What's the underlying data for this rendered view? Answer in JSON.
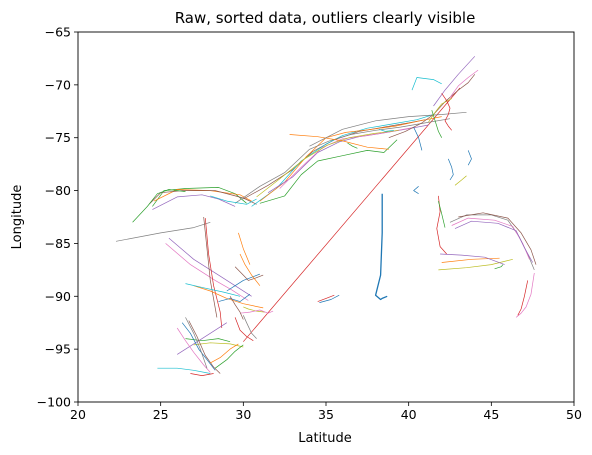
{
  "chart_data": {
    "type": "line",
    "title": "Raw, sorted data, outliers clearly visible",
    "xlabel": "Latitude",
    "ylabel": "Longitude",
    "xlim": [
      20,
      50
    ],
    "ylim": [
      -100,
      -65
    ],
    "xticks": [
      20,
      25,
      30,
      35,
      40,
      45,
      50
    ],
    "yticks": [
      -65,
      -70,
      -75,
      -80,
      -85,
      -90,
      -95,
      -100
    ],
    "xtick_labels": [
      "20",
      "25",
      "30",
      "35",
      "40",
      "45",
      "50"
    ],
    "ytick_labels": [
      "−65",
      "−70",
      "−75",
      "−80",
      "−85",
      "−90",
      "−95",
      "−100"
    ],
    "grid": false,
    "legend": "none",
    "colors": [
      "#1f77b4",
      "#ff7f0e",
      "#2ca02c",
      "#d62728",
      "#9467bd",
      "#8c564b",
      "#e377c2",
      "#7f7f7f",
      "#bcbd22",
      "#17becf"
    ],
    "series": [
      {
        "color": "#d62728",
        "x": [
          30.0,
          43.1
        ],
        "y": [
          -94.3,
          -70.3
        ]
      },
      {
        "color": "#1f77b4",
        "x": [
          38.4,
          38.4,
          38.3,
          38.0,
          38.3,
          38.4,
          38.7
        ],
        "y": [
          -80.3,
          -84.0,
          -88.0,
          -89.9,
          -90.3,
          -90.2,
          -90.0
        ]
      },
      {
        "color": "#2ca02c",
        "x": [
          24.5,
          25.2,
          26.5,
          28.5,
          29.5,
          30.2
        ],
        "y": [
          -81.5,
          -80.0,
          -79.8,
          -79.7,
          -80.3,
          -81.2
        ]
      },
      {
        "color": "#ff7f0e",
        "x": [
          24.6,
          26.0,
          28.0,
          29.8,
          30.5
        ],
        "y": [
          -81.0,
          -79.9,
          -80.0,
          -80.4,
          -81.0
        ]
      },
      {
        "color": "#8c564b",
        "x": [
          24.3,
          25.0,
          26.3,
          28.3,
          30.0,
          30.8
        ],
        "y": [
          -81.3,
          -80.2,
          -80.0,
          -80.0,
          -80.7,
          -81.3
        ]
      },
      {
        "color": "#2ca02c",
        "x": [
          23.3,
          24.2,
          24.8,
          25.5,
          26.5
        ],
        "y": [
          -83.0,
          -81.5,
          -80.3,
          -79.9,
          -80.1
        ]
      },
      {
        "color": "#9467bd",
        "x": [
          24.5,
          26.0,
          27.5,
          28.5,
          29.5
        ],
        "y": [
          -81.8,
          -80.6,
          -80.4,
          -80.8,
          -81.5
        ]
      },
      {
        "color": "#8c564b",
        "x": [
          30.0,
          31.5,
          33.0,
          34.2,
          35.5,
          37.0,
          38.5,
          40.0,
          41.0
        ],
        "y": [
          -80.8,
          -79.5,
          -78.0,
          -76.3,
          -75.2,
          -74.4,
          -74.0,
          -73.6,
          -73.3
        ]
      },
      {
        "color": "#17becf",
        "x": [
          30.5,
          32.0,
          33.5,
          35.0,
          36.0,
          37.5,
          39.0,
          40.5,
          41.5
        ],
        "y": [
          -81.5,
          -79.8,
          -77.2,
          -75.6,
          -74.8,
          -74.1,
          -73.7,
          -73.3,
          -72.8
        ]
      },
      {
        "color": "#ff7f0e",
        "x": [
          31.0,
          32.5,
          33.8,
          35.0,
          36.2,
          37.8,
          39.2,
          40.7,
          42.0
        ],
        "y": [
          -81.0,
          -79.2,
          -76.8,
          -75.0,
          -74.5,
          -74.2,
          -73.9,
          -73.4,
          -73.0
        ]
      },
      {
        "color": "#7f7f7f",
        "x": [
          29.5,
          31.0,
          32.5,
          34.0,
          35.2,
          36.5,
          38.0,
          39.5,
          41.0,
          42.5
        ],
        "y": [
          -81.2,
          -79.6,
          -78.3,
          -76.1,
          -75.3,
          -74.7,
          -74.3,
          -74.0,
          -73.6,
          -73.2
        ]
      },
      {
        "color": "#9467bd",
        "x": [
          31.5,
          33.0,
          34.5,
          35.8,
          37.0,
          38.3,
          39.8,
          41.2
        ],
        "y": [
          -80.2,
          -78.7,
          -76.4,
          -75.4,
          -74.9,
          -74.6,
          -74.2,
          -73.8
        ]
      },
      {
        "color": "#e377c2",
        "x": [
          32.2,
          33.5,
          34.8,
          36.0,
          37.5,
          39.0,
          40.4
        ],
        "y": [
          -79.8,
          -77.8,
          -75.9,
          -75.1,
          -74.8,
          -74.4,
          -74.0
        ]
      },
      {
        "color": "#bcbd22",
        "x": [
          30.8,
          32.2,
          33.7,
          35.1,
          36.4,
          37.9,
          39.4
        ],
        "y": [
          -80.6,
          -78.9,
          -77.0,
          -75.7,
          -75.0,
          -74.6,
          -74.3
        ]
      },
      {
        "color": "#2ca02c",
        "x": [
          31.0,
          32.5,
          33.5,
          34.5,
          36.0,
          37.5,
          38.5,
          39.3
        ],
        "y": [
          -81.2,
          -80.5,
          -78.5,
          -77.2,
          -76.7,
          -76.2,
          -76.4,
          -75.2
        ]
      },
      {
        "color": "#ff7f0e",
        "x": [
          32.8,
          34.5,
          36.0,
          37.5,
          38.8
        ],
        "y": [
          -74.7,
          -74.9,
          -75.3,
          -75.9,
          -76.1
        ]
      },
      {
        "color": "#17becf",
        "x": [
          30.8,
          30.2,
          29.0,
          28.0
        ],
        "y": [
          -80.8,
          -81.3,
          -81.0,
          -80.5
        ]
      },
      {
        "color": "#7f7f7f",
        "x": [
          34.0,
          36.0,
          38.0,
          40.0,
          42.0,
          43.5
        ],
        "y": [
          -75.8,
          -74.2,
          -73.4,
          -73.0,
          -72.8,
          -72.6
        ]
      },
      {
        "color": "#8c564b",
        "x": [
          38.8,
          39.8,
          40.8,
          41.5,
          42.2,
          43.0,
          43.6,
          44.0
        ],
        "y": [
          -75.0,
          -74.4,
          -73.6,
          -72.8,
          -71.6,
          -70.5,
          -69.8,
          -69.0
        ]
      },
      {
        "color": "#bcbd22",
        "x": [
          41.2,
          41.6,
          42.0,
          42.6
        ],
        "y": [
          -73.5,
          -72.6,
          -71.8,
          -71.3
        ]
      },
      {
        "color": "#9467bd",
        "x": [
          41.5,
          42.2,
          43.0,
          44.0
        ],
        "y": [
          -72.0,
          -70.5,
          -69.0,
          -67.3
        ]
      },
      {
        "color": "#e377c2",
        "x": [
          42.5,
          43.0,
          43.6,
          44.2
        ],
        "y": [
          -71.2,
          -70.1,
          -69.3,
          -68.6
        ]
      },
      {
        "color": "#17becf",
        "x": [
          40.2,
          40.5,
          41.5,
          42.0
        ],
        "y": [
          -70.5,
          -69.3,
          -69.5,
          -69.9
        ]
      },
      {
        "color": "#d62728",
        "x": [
          42.0,
          42.3,
          42.5,
          42.4,
          42.2,
          42.4,
          42.6
        ],
        "y": [
          -70.8,
          -71.5,
          -72.2,
          -72.8,
          -73.4,
          -73.9,
          -74.3
        ]
      },
      {
        "color": "#2ca02c",
        "x": [
          41.4,
          41.6,
          41.8,
          42.0
        ],
        "y": [
          -72.4,
          -73.4,
          -74.4,
          -75.0
        ]
      },
      {
        "color": "#1f77b4",
        "x": [
          40.3,
          40.6,
          40.8
        ],
        "y": [
          -74.0,
          -75.0,
          -76.2
        ]
      },
      {
        "color": "#d62728",
        "x": [
          41.8,
          41.9,
          41.7,
          41.9,
          42.3
        ],
        "y": [
          -80.5,
          -82.0,
          -83.6,
          -85.3,
          -86.0
        ]
      },
      {
        "color": "#2ca02c",
        "x": [
          41.8,
          42.0,
          42.2
        ],
        "y": [
          -81.0,
          -82.2,
          -83.5
        ]
      },
      {
        "color": "#bcbd22",
        "x": [
          42.8,
          43.2,
          43.5
        ],
        "y": [
          -79.5,
          -79.0,
          -78.6
        ]
      },
      {
        "color": "#1f77b4",
        "x": [
          43.6,
          43.8,
          43.6
        ],
        "y": [
          -76.2,
          -77.0,
          -77.6
        ]
      },
      {
        "color": "#1f77b4",
        "x": [
          42.4,
          42.6,
          42.7,
          42.5
        ],
        "y": [
          -77.0,
          -77.8,
          -78.5,
          -79.0
        ]
      },
      {
        "color": "#7f7f7f",
        "x": [
          42.5,
          43.5,
          45.0,
          46.0,
          46.7,
          47.2,
          47.6
        ],
        "y": [
          -83.0,
          -82.3,
          -82.3,
          -82.8,
          -84.4,
          -86.0,
          -87.5
        ]
      },
      {
        "color": "#e377c2",
        "x": [
          42.6,
          43.6,
          45.2,
          46.3,
          46.9,
          47.3
        ],
        "y": [
          -83.3,
          -82.6,
          -82.8,
          -83.4,
          -85.0,
          -86.5
        ]
      },
      {
        "color": "#9467bd",
        "x": [
          42.8,
          43.8,
          45.4,
          46.5,
          47.0,
          47.5
        ],
        "y": [
          -83.6,
          -82.9,
          -83.1,
          -83.8,
          -85.4,
          -86.8
        ]
      },
      {
        "color": "#8c564b",
        "x": [
          43.0,
          44.5,
          46.0,
          46.8,
          47.4,
          47.7
        ],
        "y": [
          -82.5,
          -82.1,
          -82.6,
          -84.0,
          -85.6,
          -87.0
        ]
      },
      {
        "color": "#e377c2",
        "x": [
          47.6,
          47.4,
          47.1,
          46.8,
          46.5
        ],
        "y": [
          -87.8,
          -89.8,
          -91.0,
          -91.6,
          -92.0
        ]
      },
      {
        "color": "#d62728",
        "x": [
          47.2,
          47.0,
          46.8,
          46.6
        ],
        "y": [
          -88.5,
          -90.0,
          -91.2,
          -91.8
        ]
      },
      {
        "color": "#bcbd22",
        "x": [
          41.8,
          43.5,
          45.0,
          46.3
        ],
        "y": [
          -87.5,
          -87.3,
          -87.0,
          -86.5
        ]
      },
      {
        "color": "#ff7f0e",
        "x": [
          42.0,
          43.8,
          45.5
        ],
        "y": [
          -86.8,
          -86.5,
          -86.4
        ]
      },
      {
        "color": "#9467bd",
        "x": [
          41.9,
          43.2,
          44.6,
          45.8
        ],
        "y": [
          -86.0,
          -86.1,
          -86.3,
          -87.0
        ]
      },
      {
        "color": "#2ca02c",
        "x": [
          45.2,
          45.6,
          45.7
        ],
        "y": [
          -87.4,
          -87.2,
          -87.0
        ]
      },
      {
        "color": "#7f7f7f",
        "x": [
          22.3,
          25.0,
          27.0,
          28.0
        ],
        "y": [
          -84.8,
          -84.0,
          -83.5,
          -83.0
        ]
      },
      {
        "color": "#9467bd",
        "x": [
          25.5,
          27.0,
          28.5,
          29.5,
          30.5
        ],
        "y": [
          -84.5,
          -86.5,
          -88.0,
          -89.0,
          -90.0
        ]
      },
      {
        "color": "#e377c2",
        "x": [
          25.3,
          26.8,
          28.3,
          29.3,
          30.3
        ],
        "y": [
          -85.0,
          -87.0,
          -88.5,
          -89.4,
          -90.4
        ]
      },
      {
        "color": "#8c564b",
        "x": [
          27.6,
          27.8,
          28.0,
          28.4
        ],
        "y": [
          -82.5,
          -85.5,
          -88.5,
          -92.0
        ]
      },
      {
        "color": "#d62728",
        "x": [
          27.7,
          27.9,
          28.2,
          28.6,
          28.7
        ],
        "y": [
          -82.6,
          -86.0,
          -89.0,
          -91.5,
          -93.0
        ]
      },
      {
        "color": "#ff7f0e",
        "x": [
          27.0,
          28.0,
          29.0,
          30.0,
          31.2
        ],
        "y": [
          -89.0,
          -89.5,
          -90.2,
          -90.7,
          -91.1
        ]
      },
      {
        "color": "#17becf",
        "x": [
          26.5,
          27.6,
          28.8,
          29.8
        ],
        "y": [
          -88.8,
          -89.2,
          -89.6,
          -90.0
        ]
      },
      {
        "color": "#2ca02c",
        "x": [
          26.5,
          27.5,
          28.5,
          29.2
        ],
        "y": [
          -94.0,
          -94.2,
          -94.0,
          -94.3
        ]
      },
      {
        "color": "#bcbd22",
        "x": [
          27.0,
          28.0,
          29.2,
          30.0
        ],
        "y": [
          -94.6,
          -94.4,
          -94.5,
          -94.8
        ]
      },
      {
        "color": "#9467bd",
        "x": [
          26.0,
          27.0,
          28.0,
          29.0
        ],
        "y": [
          -95.5,
          -94.5,
          -93.5,
          -92.5
        ]
      },
      {
        "color": "#1f77b4",
        "x": [
          26.3,
          26.8,
          27.3,
          27.8,
          28.3
        ],
        "y": [
          -92.5,
          -93.5,
          -95.0,
          -96.0,
          -97.0
        ]
      },
      {
        "color": "#e377c2",
        "x": [
          26.0,
          26.5,
          27.0,
          27.6,
          28.0
        ],
        "y": [
          -93.0,
          -94.2,
          -95.3,
          -96.5,
          -97.2
        ]
      },
      {
        "color": "#7f7f7f",
        "x": [
          26.5,
          27.0,
          27.4,
          27.8
        ],
        "y": [
          -92.0,
          -93.5,
          -95.0,
          -96.8
        ]
      },
      {
        "color": "#8c564b",
        "x": [
          26.7,
          27.2,
          27.7,
          28.2,
          28.6
        ],
        "y": [
          -92.3,
          -93.8,
          -95.6,
          -96.7,
          -97.3
        ]
      },
      {
        "color": "#17becf",
        "x": [
          24.8,
          26.0,
          27.0,
          28.0
        ],
        "y": [
          -96.8,
          -96.8,
          -97.0,
          -97.3
        ]
      },
      {
        "color": "#d62728",
        "x": [
          26.8,
          27.5,
          28.2
        ],
        "y": [
          -97.3,
          -97.5,
          -97.3
        ]
      },
      {
        "color": "#ff7f0e",
        "x": [
          28.0,
          28.6,
          29.2,
          29.7
        ],
        "y": [
          -96.3,
          -95.8,
          -95.0,
          -94.5
        ]
      },
      {
        "color": "#2ca02c",
        "x": [
          28.3,
          29.0,
          29.5,
          30.0
        ],
        "y": [
          -96.8,
          -96.0,
          -95.2,
          -94.6
        ]
      },
      {
        "color": "#1f77b4",
        "x": [
          29.0,
          29.5,
          30.0,
          30.5,
          31.0
        ],
        "y": [
          -89.5,
          -89.0,
          -88.5,
          -88.2,
          -87.9
        ]
      },
      {
        "color": "#8c564b",
        "x": [
          29.5,
          30.0,
          30.3,
          30.7,
          31.2
        ],
        "y": [
          -87.2,
          -88.0,
          -88.5,
          -88.3,
          -88.0
        ]
      },
      {
        "color": "#ff7f0e",
        "x": [
          29.8,
          30.1,
          30.5,
          31.0
        ],
        "y": [
          -86.0,
          -87.0,
          -88.0,
          -89.0
        ]
      },
      {
        "color": "#bcbd22",
        "x": [
          30.0,
          30.3,
          30.8,
          31.3
        ],
        "y": [
          -91.0,
          -91.2,
          -91.4,
          -91.5
        ]
      },
      {
        "color": "#e377c2",
        "x": [
          29.8,
          30.4,
          31.0,
          31.5,
          31.8
        ],
        "y": [
          -91.6,
          -91.5,
          -91.3,
          -91.6,
          -91.4
        ]
      },
      {
        "color": "#1f77b4",
        "x": [
          28.5,
          29.2,
          29.8,
          30.4
        ],
        "y": [
          -90.5,
          -90.2,
          -90.5,
          -89.8
        ]
      },
      {
        "color": "#d62728",
        "x": [
          29.5,
          29.8,
          30.2,
          30.6
        ],
        "y": [
          -92.0,
          -93.2,
          -93.8,
          -94.2
        ]
      },
      {
        "color": "#7f7f7f",
        "x": [
          30.0,
          30.2,
          30.5,
          30.8
        ],
        "y": [
          -91.8,
          -92.5,
          -93.5,
          -94.0
        ]
      },
      {
        "color": "#8c564b",
        "x": [
          29.2,
          29.5,
          29.8,
          30.0
        ],
        "y": [
          -90.0,
          -90.8,
          -91.5,
          -92.2
        ]
      },
      {
        "color": "#ff7f0e",
        "x": [
          29.7,
          30.0,
          30.4
        ],
        "y": [
          -84.0,
          -85.5,
          -87.0
        ]
      },
      {
        "color": "#d62728",
        "x": [
          34.5,
          35.0,
          35.5
        ],
        "y": [
          -90.5,
          -90.2,
          -89.9
        ]
      },
      {
        "color": "#1f77b4",
        "x": [
          34.6,
          35.3,
          35.8
        ],
        "y": [
          -90.6,
          -90.3,
          -89.9
        ]
      },
      {
        "color": "#1f77b4",
        "x": [
          40.6,
          40.3,
          40.6
        ],
        "y": [
          -79.6,
          -80.0,
          -80.3
        ]
      },
      {
        "color": "#2ca02c",
        "x": [
          36.3,
          36.6,
          36.9
        ],
        "y": [
          -75.5,
          -75.8,
          -76.0
        ]
      },
      {
        "color": "#17becf",
        "x": [
          38.2,
          38.6,
          39.1
        ],
        "y": [
          -74.2,
          -74.4,
          -74.3
        ]
      }
    ]
  }
}
